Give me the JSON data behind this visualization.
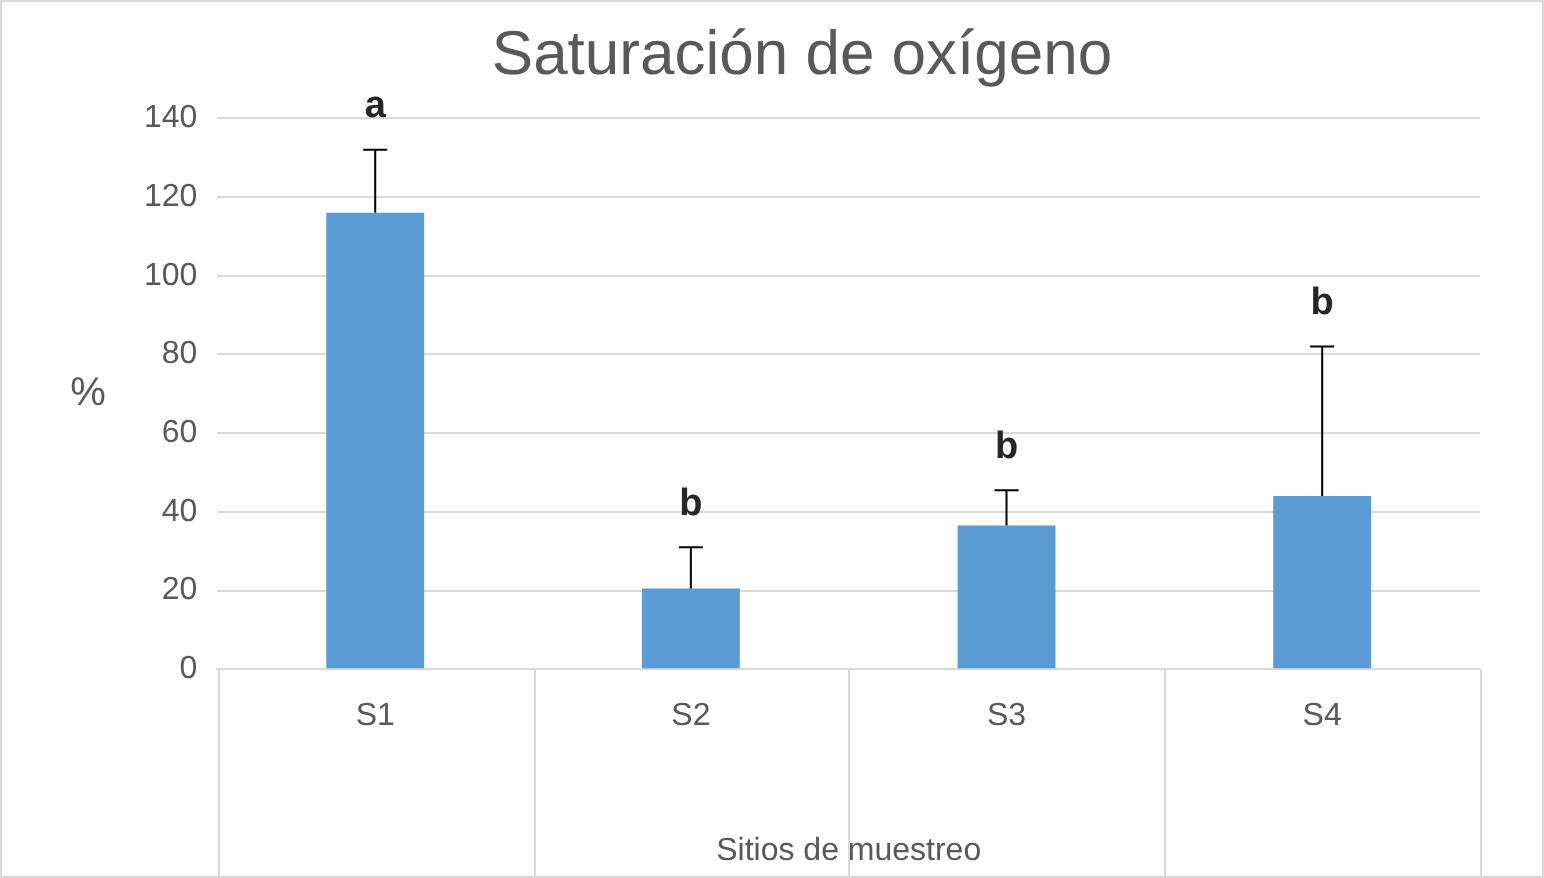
{
  "chart_data": {
    "type": "bar",
    "title": "Saturación de oxígeno",
    "xlabel": "Sitios de muestreo",
    "ylabel": "%",
    "categories": [
      "S1",
      "S2",
      "S3",
      "S4"
    ],
    "values": [
      116,
      20.5,
      36.5,
      44
    ],
    "errors": [
      [
        116,
        132
      ],
      [
        20.5,
        31
      ],
      [
        36.5,
        45.5
      ],
      [
        44,
        82
      ]
    ],
    "color": "#5b9bd5",
    "ylim": [
      0,
      140
    ],
    "yticks": [
      0,
      20,
      40,
      60,
      80,
      100,
      120,
      140
    ],
    "grid": "y",
    "annotations": [
      {
        "text": "a",
        "x": "S1",
        "y": 132
      },
      {
        "text": "b",
        "x": "S2",
        "y": 31
      },
      {
        "text": "b",
        "x": "S3",
        "y": 45.5
      },
      {
        "text": "b",
        "x": "S4",
        "y": 82
      }
    ]
  }
}
